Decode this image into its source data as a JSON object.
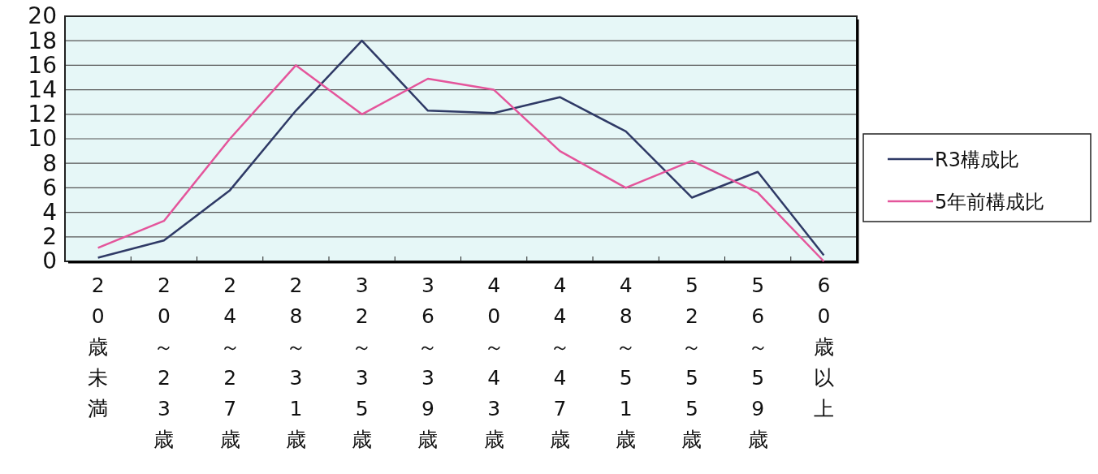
{
  "chart_data": {
    "type": "line",
    "categories": [
      "20歳未満",
      "20～23歳",
      "24～27歳",
      "28～31歳",
      "32～35歳",
      "36～39歳",
      "40～43歳",
      "44～47歳",
      "48～51歳",
      "52～55歳",
      "56～59歳",
      "60歳以上"
    ],
    "series": [
      {
        "name": "R3構成比",
        "color": "#2f3a66",
        "values": [
          0.3,
          1.7,
          5.8,
          12.3,
          18,
          12.3,
          12.1,
          13.4,
          10.6,
          5.2,
          7.3,
          0.5
        ]
      },
      {
        "name": "5年前構成比",
        "color": "#e4559b",
        "values": [
          1.1,
          3.3,
          10,
          16,
          12,
          14.9,
          14,
          9,
          6,
          8.2,
          5.6,
          0
        ]
      }
    ],
    "ylim": [
      0,
      20
    ],
    "yticks": [
      0,
      2,
      4,
      6,
      8,
      10,
      12,
      14,
      16,
      18,
      20
    ],
    "grid": "y",
    "legend": "right",
    "marker": "none",
    "line_style": "solid"
  }
}
